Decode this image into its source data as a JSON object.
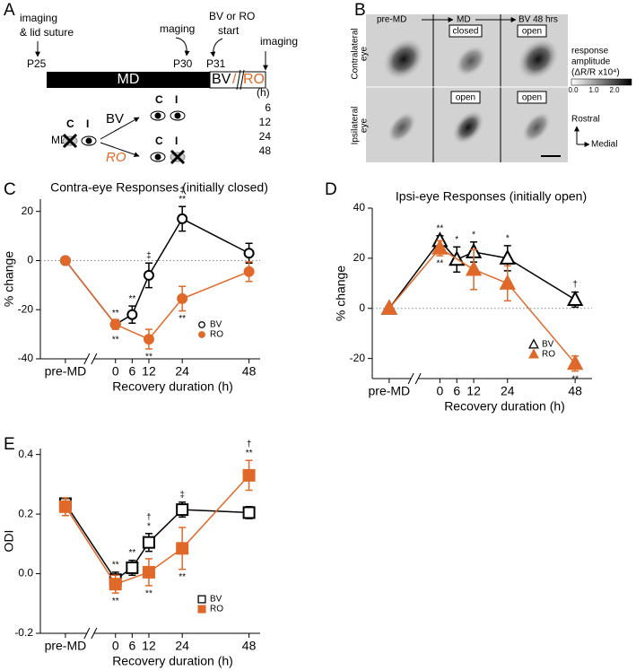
{
  "panel_labels": [
    "A",
    "B",
    "C",
    "D",
    "E"
  ],
  "timeline": {
    "imaging_start": [
      "imaging",
      "& lid suture"
    ],
    "p25": "P25",
    "imaging_p30": "maging",
    "p30": "P30",
    "start": [
      "BV or RO",
      "start"
    ],
    "p31": "P31",
    "imaging_end": "imaging",
    "md_bar": "MD",
    "bv": "BV",
    "slash": "/",
    "ro": "RO",
    "hours_unit": "(h)",
    "hours": [
      6,
      12,
      24,
      48
    ]
  },
  "schematic": {
    "md": "MD",
    "c": "C",
    "i": "I",
    "bv": "BV",
    "ro": "RO",
    "bv_c": "C",
    "bv_i": "I",
    "ro_c": "C",
    "ro_i": "I"
  },
  "maps": {
    "columns": [
      "pre-MD",
      "MD",
      "BV 48 hrs"
    ],
    "contra_label": [
      "Contralateral",
      "eye"
    ],
    "ipsi_label": [
      "Ipsilateral",
      "eye"
    ],
    "contra_states": [
      "closed",
      "open"
    ],
    "ipsi_states": [
      "open",
      "open"
    ],
    "scale_title": [
      "response",
      "amplitude",
      "(ΔR/R x10⁴)"
    ],
    "scale_ticks": [
      "0.0",
      "1.0",
      "2.0"
    ],
    "rostral": "Rostral",
    "medial": "Medial"
  },
  "chart_data": [
    {
      "type": "line",
      "title": "Contra-eye Responses (initially closed)",
      "xlabel": "Recovery duration (h)",
      "ylabel": "% change",
      "xlim": [
        -27,
        52
      ],
      "xticks": [
        {
          "value": -18,
          "label": "pre-MD"
        },
        0,
        6,
        12,
        24,
        48
      ],
      "ylim": [
        -40,
        25
      ],
      "yticks": [
        20,
        0,
        -20,
        -40
      ],
      "zero_line": true,
      "marker": "circle",
      "legend": "lower right",
      "series": [
        {
          "name": "BV",
          "color": "#000000",
          "filled": false,
          "x": [
            -18,
            0,
            6,
            12,
            24,
            48
          ],
          "values": [
            0,
            -26,
            -22,
            -6,
            17,
            3
          ],
          "errors": [
            1,
            1.5,
            3.5,
            5,
            5,
            4
          ],
          "sig_above": [
            null,
            [
              "**"
            ],
            [
              "**"
            ],
            [
              "‡"
            ],
            [
              "‡",
              "**"
            ],
            null
          ]
        },
        {
          "name": "RO",
          "color": "#e0692a",
          "filled": true,
          "x": [
            -18,
            0,
            12,
            24,
            48
          ],
          "values": [
            0,
            -26,
            -32,
            -15.5,
            -4.5
          ],
          "errors": [
            1,
            2,
            4,
            5,
            4
          ],
          "sig_below": [
            null,
            [
              "**"
            ],
            [
              "**"
            ],
            [
              "**"
            ],
            null
          ]
        }
      ]
    },
    {
      "type": "line",
      "title": "Ipsi-eye Responses (initially open)",
      "xlabel": "Recovery duration (h)",
      "ylabel": "% change",
      "xlim": [
        -24,
        54
      ],
      "xticks": [
        {
          "value": -18,
          "label": "pre-MD"
        },
        0,
        6,
        12,
        24,
        48
      ],
      "ylim": [
        -28,
        40
      ],
      "yticks": [
        40,
        20,
        0,
        -20
      ],
      "zero_line": true,
      "marker": "triangle",
      "legend": "lower right",
      "series": [
        {
          "name": "BV",
          "color": "#000000",
          "filled": false,
          "x": [
            -18,
            0,
            6,
            12,
            24,
            48
          ],
          "values": [
            0,
            27,
            19.5,
            22.5,
            20,
            3.5
          ],
          "errors": [
            1,
            2,
            5,
            4,
            5,
            3
          ],
          "sig_above": [
            null,
            [
              "**"
            ],
            [
              "*"
            ],
            [
              "*"
            ],
            [
              "*"
            ],
            [
              "†"
            ]
          ]
        },
        {
          "name": "RO",
          "color": "#e0692a",
          "filled": true,
          "x": [
            -18,
            0,
            12,
            24,
            48
          ],
          "values": [
            0,
            24,
            15.5,
            10,
            -22
          ],
          "errors": [
            1,
            3,
            8,
            7,
            3
          ],
          "sig_below": [
            null,
            [
              "**"
            ],
            null,
            null,
            [
              "**"
            ]
          ]
        }
      ]
    },
    {
      "type": "line",
      "xlabel": "Recovery duration (h)",
      "ylabel": "ODI",
      "xlim": [
        -27,
        52
      ],
      "xticks": [
        {
          "value": -18,
          "label": "pre-MD"
        },
        0,
        6,
        12,
        24,
        48
      ],
      "ylim": [
        -0.2,
        0.42
      ],
      "yticks": [
        0.4,
        0.2,
        {
          "value": 0,
          "label": "0.0"
        },
        -0.2
      ],
      "zero_line": false,
      "marker": "square",
      "legend": "lower right",
      "series": [
        {
          "name": "BV",
          "color": "#000000",
          "filled": false,
          "x": [
            -18,
            0,
            6,
            12,
            24,
            48
          ],
          "values": [
            0.235,
            -0.02,
            0.02,
            0.105,
            0.215,
            0.205
          ],
          "errors": [
            0.015,
            0.025,
            0.025,
            0.03,
            0.025,
            0.02
          ],
          "sig_above": [
            null,
            [
              "**"
            ],
            [
              "**"
            ],
            [
              "†",
              "*"
            ],
            [
              "‡"
            ],
            null
          ]
        },
        {
          "name": "RO",
          "color": "#e0692a",
          "filled": true,
          "x": [
            -18,
            0,
            12,
            24,
            48
          ],
          "values": [
            0.225,
            -0.035,
            0.005,
            0.085,
            0.33
          ],
          "errors": [
            0.03,
            0.03,
            0.045,
            0.07,
            0.05
          ],
          "sig_above": [
            null,
            null,
            null,
            null,
            [
              "†",
              "**"
            ]
          ],
          "sig_below": [
            null,
            [
              "**"
            ],
            [
              "**"
            ],
            [
              "**"
            ],
            null
          ]
        }
      ]
    }
  ]
}
